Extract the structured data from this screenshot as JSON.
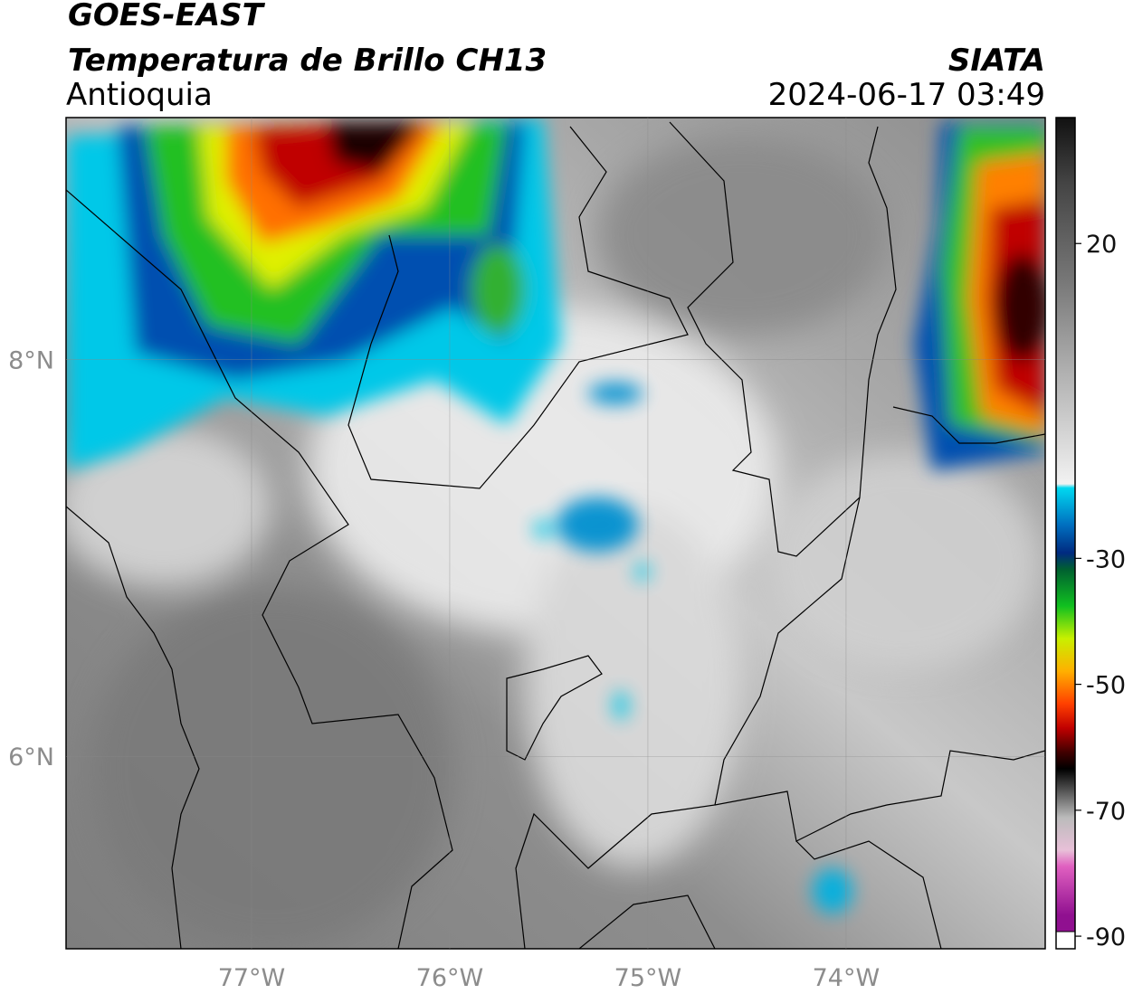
{
  "header": {
    "title": "GOES-EAST",
    "subtitle": "Temperatura de Brillo CH13",
    "region": "Antioquia",
    "source": "SIATA",
    "datetime": "2024-06-17 03:49"
  },
  "map": {
    "xlim": [
      -77.936,
      -72.995
    ],
    "ylim": [
      5.03,
      9.22
    ],
    "xticks": [
      {
        "value": -77,
        "label": "77°W"
      },
      {
        "value": -76,
        "label": "76°W"
      },
      {
        "value": -75,
        "label": "75°W"
      },
      {
        "value": -74,
        "label": "74°W"
      }
    ],
    "yticks": [
      {
        "value": 8,
        "label": "8°N"
      },
      {
        "value": 6,
        "label": "6°N"
      }
    ],
    "grid": true
  },
  "colorbar": {
    "clim": [
      -92,
      40
    ],
    "ticks": [
      20,
      -30,
      -50,
      -70,
      -90
    ]
  }
}
